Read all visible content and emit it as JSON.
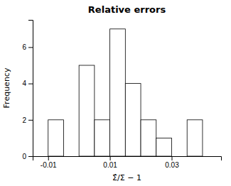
{
  "chart_data": {
    "type": "histogram",
    "title": "Relative errors",
    "xlabel": "Σ̂/Σ − 1",
    "ylabel": "Frequency",
    "bins": [
      -0.015,
      -0.01,
      -0.005,
      0.0,
      0.005,
      0.01,
      0.015,
      0.02,
      0.025,
      0.03,
      0.035,
      0.04,
      0.045
    ],
    "values": [
      0,
      2,
      0,
      5,
      2,
      7,
      4,
      2,
      1,
      0,
      2,
      0
    ],
    "color": "white",
    "xlim": [
      -0.015,
      0.046
    ],
    "ylim": [
      0,
      7.5
    ],
    "xticks": [
      -0.01,
      0.01,
      0.03
    ],
    "yticks": [
      0,
      2,
      4,
      6
    ]
  }
}
